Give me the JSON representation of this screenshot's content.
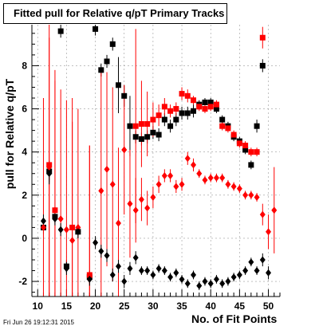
{
  "title": "Fitted pull for Relative q/pT Primary Tracks",
  "timestamp": "Fri Jun 26 19:12:31 2015",
  "chart_data": {
    "type": "scatter",
    "title": "Fitted pull for Relative q/pT Primary Tracks",
    "xlabel": "No. of Fit Points",
    "ylabel": "pull for Relative q/pT",
    "xlim": [
      9,
      52
    ],
    "ylim": [
      -2.7,
      9.9
    ],
    "xticks": [
      10,
      15,
      20,
      25,
      30,
      35,
      40,
      45,
      50
    ],
    "yticks": [
      -2,
      0,
      2,
      4,
      6,
      8
    ],
    "grid": true,
    "series": [
      {
        "marker": "square",
        "color": "#000000",
        "points": [
          {
            "x": 11,
            "y": 0.5,
            "err": 0.3
          },
          {
            "x": 12,
            "y": 3.1,
            "err": 0.5
          },
          {
            "x": 13,
            "y": 1.0,
            "err": 0.3
          },
          {
            "x": 14,
            "y": 9.6,
            "err": 0.3
          },
          {
            "x": 15,
            "y": -1.3,
            "err": 0.3
          },
          {
            "x": 17,
            "y": 0.3,
            "err": 0.3
          },
          {
            "x": 19,
            "y": -1.8,
            "err": 0.3
          },
          {
            "x": 20,
            "y": 9.7,
            "err": 0.3
          },
          {
            "x": 21,
            "y": 7.8,
            "err": 0.3
          },
          {
            "x": 22,
            "y": 8.2,
            "err": 0.3
          },
          {
            "x": 23,
            "y": 9.0,
            "err": 0.3
          },
          {
            "x": 24,
            "y": 7.1,
            "err": 1.3
          },
          {
            "x": 25,
            "y": 6.6,
            "err": 0.5
          },
          {
            "x": 26,
            "y": 5.2,
            "err": 1.4
          },
          {
            "x": 27,
            "y": 4.7,
            "err": 0.3
          },
          {
            "x": 28,
            "y": 4.6,
            "err": 0.3
          },
          {
            "x": 29,
            "y": 4.7,
            "err": 0.3
          },
          {
            "x": 30,
            "y": 4.9,
            "err": 0.3
          },
          {
            "x": 31,
            "y": 4.8,
            "err": 0.3
          },
          {
            "x": 32,
            "y": 5.5,
            "err": 0.3
          },
          {
            "x": 33,
            "y": 5.2,
            "err": 0.3
          },
          {
            "x": 34,
            "y": 5.5,
            "err": 0.3
          },
          {
            "x": 35,
            "y": 5.8,
            "err": 0.3
          },
          {
            "x": 36,
            "y": 5.8,
            "err": 0.3
          },
          {
            "x": 37,
            "y": 5.9,
            "err": 0.3
          },
          {
            "x": 38,
            "y": 6.2,
            "err": 0.2
          },
          {
            "x": 39,
            "y": 6.3,
            "err": 0.2
          },
          {
            "x": 40,
            "y": 6.3,
            "err": 0.2
          },
          {
            "x": 41,
            "y": 6.0,
            "err": 0.2
          },
          {
            "x": 42,
            "y": 5.5,
            "err": 0.2
          },
          {
            "x": 43,
            "y": 5.2,
            "err": 0.2
          },
          {
            "x": 44,
            "y": 4.7,
            "err": 0.2
          },
          {
            "x": 45,
            "y": 4.5,
            "err": 0.2
          },
          {
            "x": 46,
            "y": 4.1,
            "err": 0.2
          },
          {
            "x": 47,
            "y": 3.4,
            "err": 0.2
          },
          {
            "x": 48,
            "y": 5.2,
            "err": 0.3
          },
          {
            "x": 49,
            "y": 8.0,
            "err": 0.3
          }
        ]
      },
      {
        "marker": "square",
        "color": "#ff0000",
        "points": [
          {
            "x": 12,
            "y": 3.4,
            "err": 6.5
          },
          {
            "x": 13,
            "y": 1.3,
            "err": 6.5
          },
          {
            "x": 16,
            "y": 0.5,
            "err": 6.0
          },
          {
            "x": 19,
            "y": -1.7,
            "err": 6.0
          },
          {
            "x": 27,
            "y": 5.2,
            "err": 4.5
          },
          {
            "x": 28,
            "y": 5.3,
            "err": 2.0
          },
          {
            "x": 29,
            "y": 5.3,
            "err": 1.5
          },
          {
            "x": 30,
            "y": 5.5,
            "err": 0.8
          },
          {
            "x": 31,
            "y": 5.7,
            "err": 0.5
          },
          {
            "x": 32,
            "y": 6.1,
            "err": 0.4
          },
          {
            "x": 33,
            "y": 5.9,
            "err": 0.3
          },
          {
            "x": 34,
            "y": 6.0,
            "err": 0.3
          },
          {
            "x": 35,
            "y": 6.7,
            "err": 0.3
          },
          {
            "x": 36,
            "y": 6.6,
            "err": 0.3
          },
          {
            "x": 37,
            "y": 6.4,
            "err": 0.2
          },
          {
            "x": 38,
            "y": 6.1,
            "err": 0.2
          },
          {
            "x": 39,
            "y": 6.0,
            "err": 0.2
          },
          {
            "x": 40,
            "y": 6.1,
            "err": 0.2
          },
          {
            "x": 41,
            "y": 6.2,
            "err": 0.2
          },
          {
            "x": 42,
            "y": 5.2,
            "err": 0.2
          },
          {
            "x": 43,
            "y": 5.1,
            "err": 0.2
          },
          {
            "x": 44,
            "y": 4.8,
            "err": 0.2
          },
          {
            "x": 45,
            "y": 4.4,
            "err": 0.2
          },
          {
            "x": 46,
            "y": 4.3,
            "err": 0.2
          },
          {
            "x": 47,
            "y": 4.0,
            "err": 0.2
          },
          {
            "x": 48,
            "y": 4.0,
            "err": 0.2
          },
          {
            "x": 49,
            "y": 9.3,
            "err": 0.5
          }
        ]
      },
      {
        "marker": "diamond",
        "color": "#ff0000",
        "points": [
          {
            "x": 11,
            "y": 0.5,
            "err": 6.0
          },
          {
            "x": 12,
            "y": 3.3,
            "err": 6.0
          },
          {
            "x": 13,
            "y": 1.3,
            "err": 6.0
          },
          {
            "x": 14,
            "y": 0.9,
            "err": 6.0
          },
          {
            "x": 15,
            "y": 0.4,
            "err": 6.0
          },
          {
            "x": 16,
            "y": -0.1,
            "err": 5.5
          },
          {
            "x": 17,
            "y": 0.5,
            "err": 5.5
          },
          {
            "x": 19,
            "y": -1.7,
            "err": 6.0
          },
          {
            "x": 21,
            "y": 2.2,
            "err": 5.5
          },
          {
            "x": 22,
            "y": 3.2,
            "err": 4.5
          },
          {
            "x": 23,
            "y": 2.5,
            "err": 4.5
          },
          {
            "x": 24,
            "y": 0.7,
            "err": 3.5
          },
          {
            "x": 25,
            "y": 4.1,
            "err": 3.0
          },
          {
            "x": 26,
            "y": 1.6,
            "err": 2.5
          },
          {
            "x": 27,
            "y": 1.3,
            "err": 1.5
          },
          {
            "x": 28,
            "y": 1.8,
            "err": 1.0
          },
          {
            "x": 29,
            "y": 1.4,
            "err": 0.8
          },
          {
            "x": 30,
            "y": 1.9,
            "err": 0.5
          },
          {
            "x": 31,
            "y": 2.5,
            "err": 0.4
          },
          {
            "x": 32,
            "y": 2.9,
            "err": 0.3
          },
          {
            "x": 33,
            "y": 2.9,
            "err": 0.3
          },
          {
            "x": 34,
            "y": 2.4,
            "err": 0.3
          },
          {
            "x": 35,
            "y": 2.5,
            "err": 0.3
          },
          {
            "x": 36,
            "y": 3.7,
            "err": 0.3
          },
          {
            "x": 37,
            "y": 3.4,
            "err": 0.3
          },
          {
            "x": 38,
            "y": 3.0,
            "err": 0.2
          },
          {
            "x": 39,
            "y": 2.7,
            "err": 0.2
          },
          {
            "x": 40,
            "y": 2.8,
            "err": 0.2
          },
          {
            "x": 41,
            "y": 2.8,
            "err": 0.2
          },
          {
            "x": 42,
            "y": 2.8,
            "err": 0.2
          },
          {
            "x": 43,
            "y": 2.5,
            "err": 0.2
          },
          {
            "x": 44,
            "y": 2.4,
            "err": 0.2
          },
          {
            "x": 45,
            "y": 2.3,
            "err": 0.2
          },
          {
            "x": 46,
            "y": 2.0,
            "err": 0.2
          },
          {
            "x": 47,
            "y": 2.0,
            "err": 0.2
          },
          {
            "x": 48,
            "y": 1.9,
            "err": 0.2
          },
          {
            "x": 49,
            "y": 1.1,
            "err": 0.5
          },
          {
            "x": 50,
            "y": 0.3,
            "err": 0.8
          },
          {
            "x": 51,
            "y": 1.3,
            "err": 2.0
          }
        ]
      },
      {
        "marker": "diamond",
        "color": "#000000",
        "points": [
          {
            "x": 11,
            "y": 0.8,
            "err": 0.3
          },
          {
            "x": 12,
            "y": 3.0,
            "err": 0.5
          },
          {
            "x": 13,
            "y": 0.9,
            "err": 0.3
          },
          {
            "x": 14,
            "y": 0.4,
            "err": 0.3
          },
          {
            "x": 15,
            "y": -1.4,
            "err": 0.3
          },
          {
            "x": 17,
            "y": 0.3,
            "err": 0.3
          },
          {
            "x": 19,
            "y": -1.9,
            "err": 0.3
          },
          {
            "x": 20,
            "y": -0.2,
            "err": 0.3
          },
          {
            "x": 21,
            "y": -0.6,
            "err": 0.3
          },
          {
            "x": 22,
            "y": -0.8,
            "err": 0.3
          },
          {
            "x": 23,
            "y": -1.7,
            "err": 0.3
          },
          {
            "x": 24,
            "y": -1.3,
            "err": 0.3
          },
          {
            "x": 25,
            "y": -2.0,
            "err": 0.3
          },
          {
            "x": 26,
            "y": -1.4,
            "err": 0.3
          },
          {
            "x": 27,
            "y": -0.9,
            "err": 0.3
          },
          {
            "x": 28,
            "y": -1.5,
            "err": 0.2
          },
          {
            "x": 29,
            "y": -1.5,
            "err": 0.2
          },
          {
            "x": 30,
            "y": -1.7,
            "err": 0.2
          },
          {
            "x": 31,
            "y": -1.4,
            "err": 0.2
          },
          {
            "x": 32,
            "y": -1.5,
            "err": 0.2
          },
          {
            "x": 33,
            "y": -1.8,
            "err": 0.2
          },
          {
            "x": 34,
            "y": -1.6,
            "err": 0.2
          },
          {
            "x": 35,
            "y": -1.9,
            "err": 0.2
          },
          {
            "x": 36,
            "y": -2.1,
            "err": 0.2
          },
          {
            "x": 37,
            "y": -1.7,
            "err": 0.2
          },
          {
            "x": 38,
            "y": -2.2,
            "err": 0.2
          },
          {
            "x": 39,
            "y": -2.0,
            "err": 0.2
          },
          {
            "x": 40,
            "y": -2.1,
            "err": 0.2
          },
          {
            "x": 41,
            "y": -1.9,
            "err": 0.2
          },
          {
            "x": 42,
            "y": -2.1,
            "err": 0.2
          },
          {
            "x": 43,
            "y": -2.0,
            "err": 0.2
          },
          {
            "x": 44,
            "y": -1.8,
            "err": 0.2
          },
          {
            "x": 45,
            "y": -1.7,
            "err": 0.2
          },
          {
            "x": 46,
            "y": -1.5,
            "err": 0.2
          },
          {
            "x": 47,
            "y": -1.1,
            "err": 0.2
          },
          {
            "x": 48,
            "y": -1.5,
            "err": 0.2
          },
          {
            "x": 49,
            "y": -1.0,
            "err": 0.3
          },
          {
            "x": 50,
            "y": -1.6,
            "err": 0.3
          }
        ]
      }
    ]
  }
}
